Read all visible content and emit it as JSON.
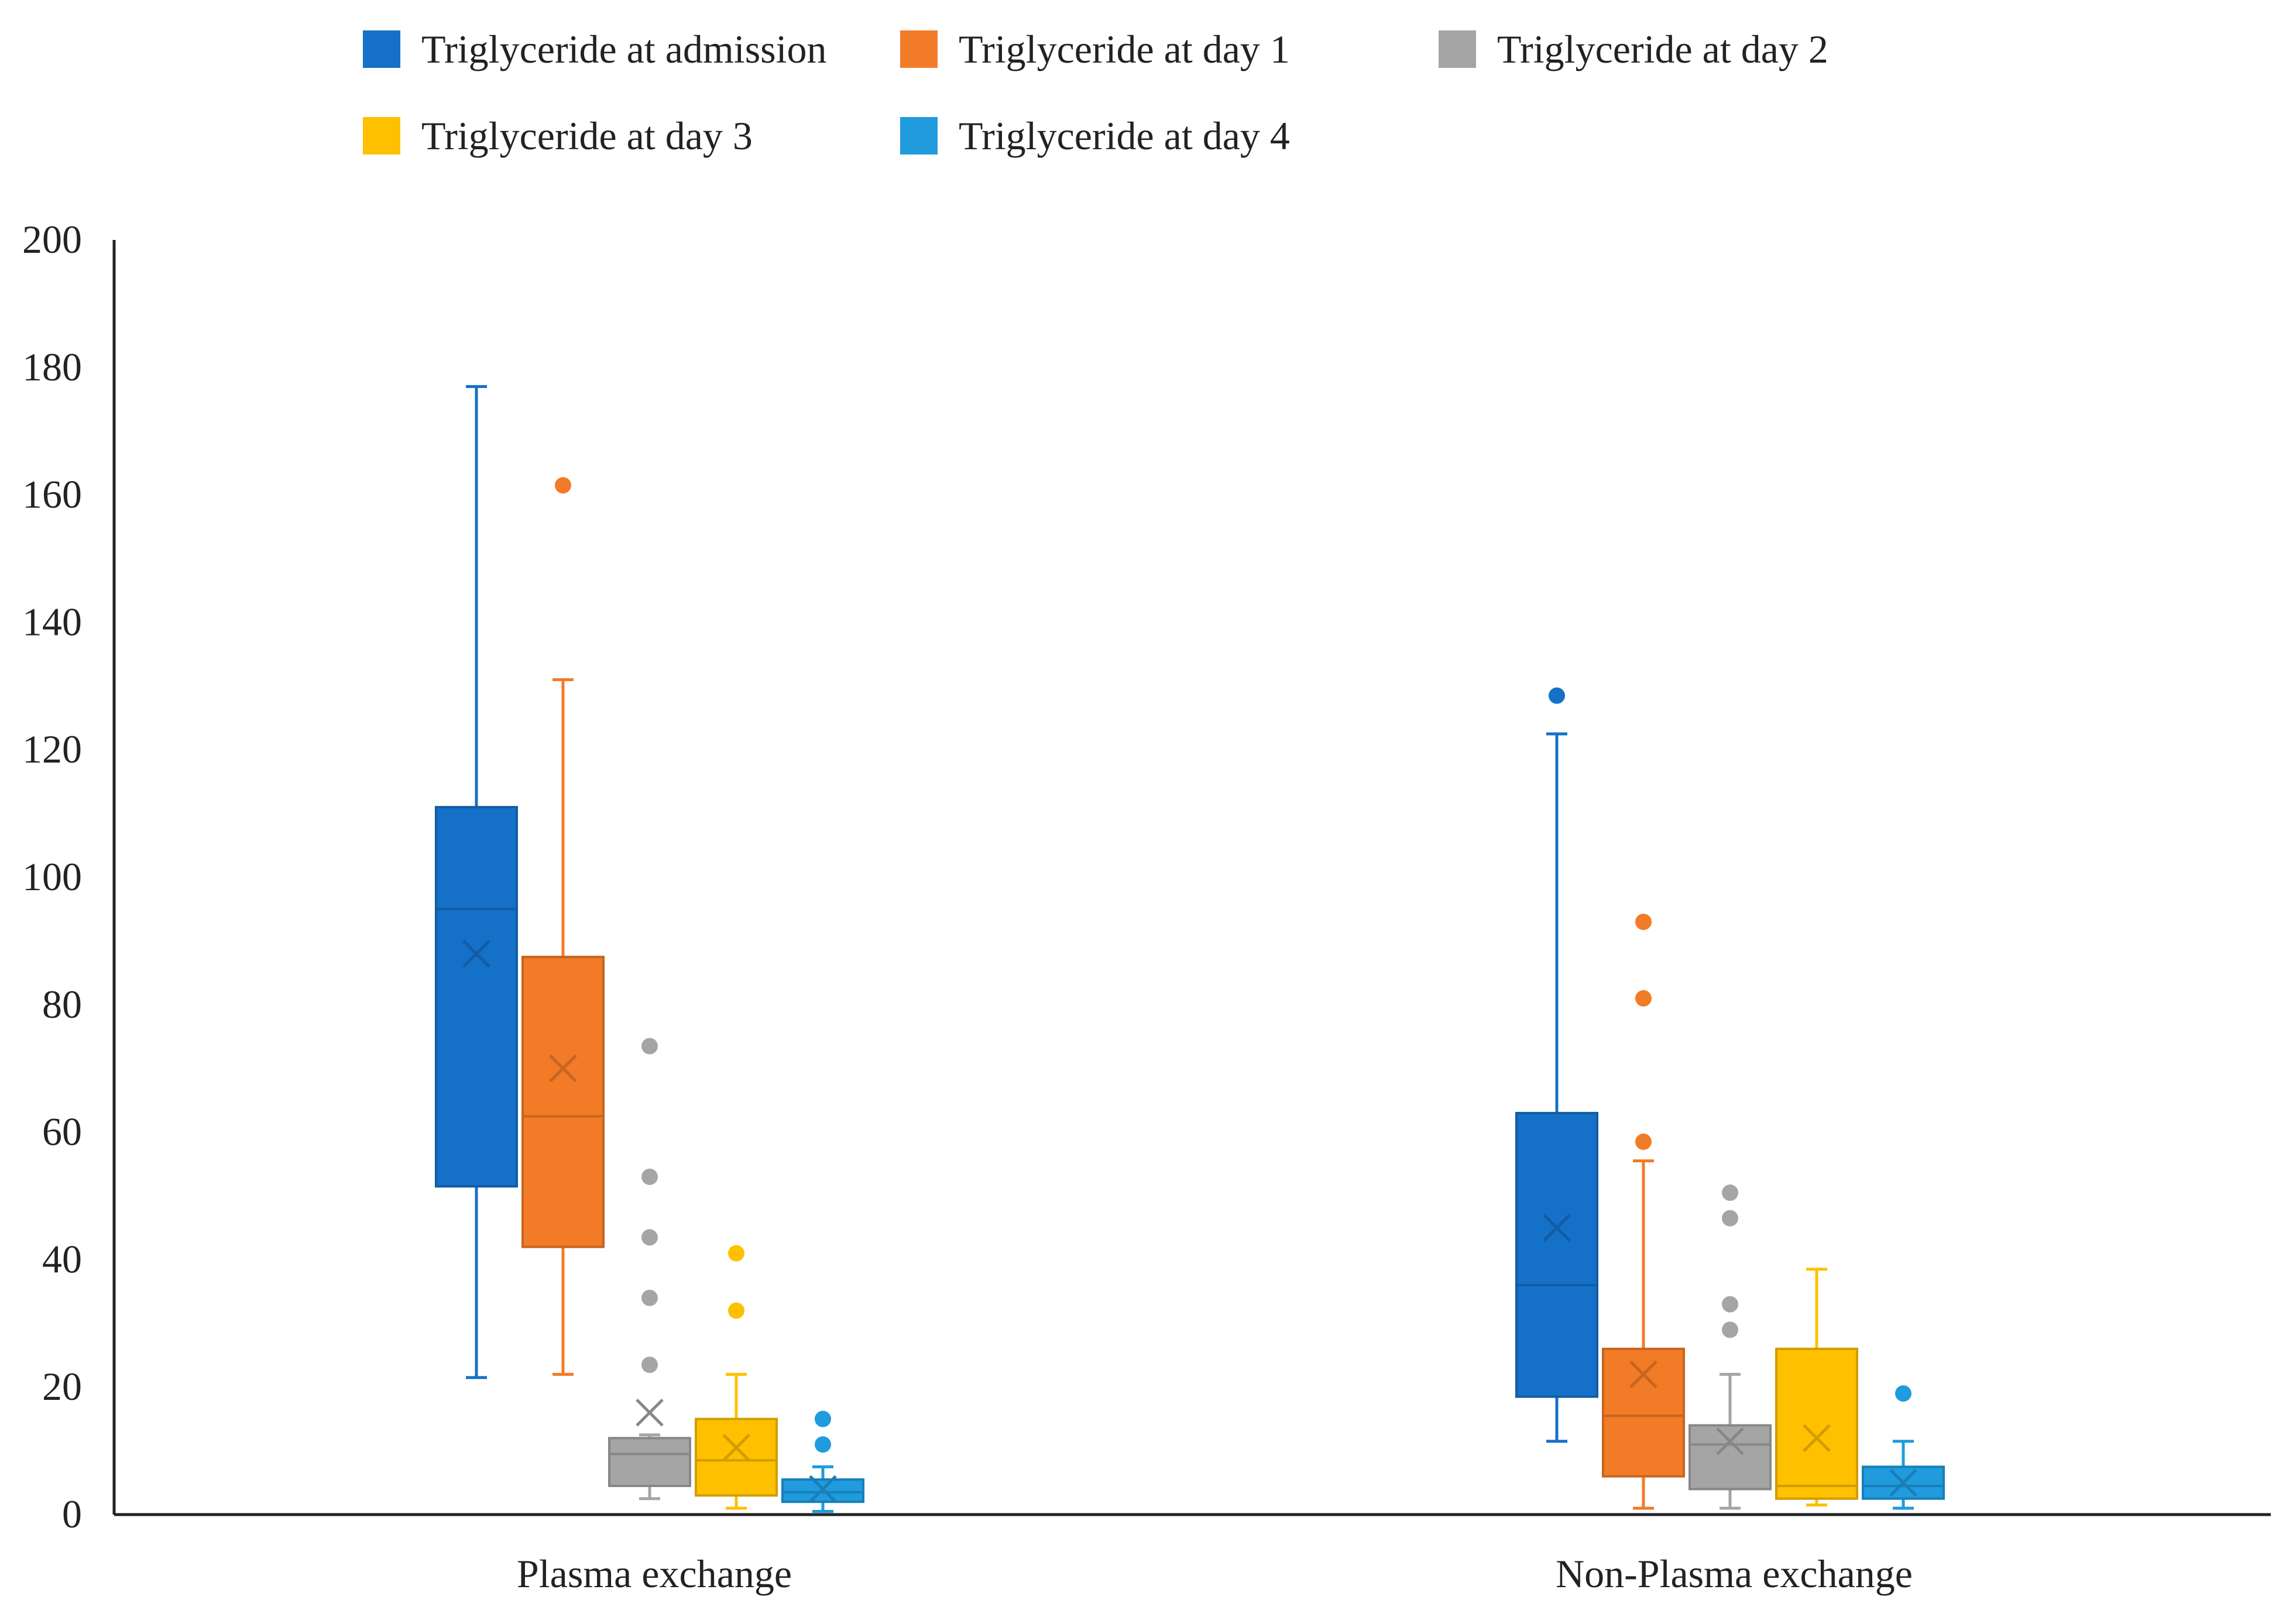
{
  "chart_data": {
    "type": "box",
    "title": "",
    "xlabel": "",
    "ylabel": "",
    "ylim": [
      0,
      200
    ],
    "yticks": [
      "0",
      "20",
      "40",
      "60",
      "80",
      "100",
      "120",
      "140",
      "160",
      "180",
      "200"
    ],
    "grid": false,
    "legend_position": "top",
    "categories": [
      "Plasma exchange",
      "Non-Plasma exchange"
    ],
    "series": [
      {
        "name": "Triglyceride at admission",
        "color": "#1570C8",
        "boxes": [
          {
            "min": 21.5,
            "q1": 51.5,
            "median": 95,
            "q3": 111,
            "max": 177,
            "mean": 88,
            "outliers": []
          },
          {
            "min": 11.5,
            "q1": 18.5,
            "median": 36,
            "q3": 63,
            "max": 122.5,
            "mean": 45,
            "outliers": [
              128.5
            ]
          }
        ]
      },
      {
        "name": "Triglyceride at day 1",
        "color": "#F27B27",
        "boxes": [
          {
            "min": 22,
            "q1": 42,
            "median": 62.5,
            "q3": 87.5,
            "max": 131,
            "mean": 70,
            "outliers": [
              161.5
            ]
          },
          {
            "min": 1,
            "q1": 6,
            "median": 15.5,
            "q3": 26,
            "max": 55.5,
            "mean": 22,
            "outliers": [
              58.5,
              81,
              93
            ]
          }
        ]
      },
      {
        "name": "Triglyceride at day 2",
        "color": "#A5A5A5",
        "boxes": [
          {
            "min": 2.5,
            "q1": 4.5,
            "median": 9.5,
            "q3": 12,
            "max": 12.5,
            "mean": 16,
            "outliers": [
              23.5,
              34,
              43.5,
              53,
              73.5
            ]
          },
          {
            "min": 1,
            "q1": 4,
            "median": 11,
            "q3": 14,
            "max": 22,
            "mean": 11.5,
            "outliers": [
              29,
              33,
              46.5,
              50.5
            ]
          }
        ]
      },
      {
        "name": "Triglyceride at day 3",
        "color": "#FFC000",
        "boxes": [
          {
            "min": 1,
            "q1": 3,
            "median": 8.5,
            "q3": 15,
            "max": 22,
            "mean": 10.5,
            "outliers": [
              32,
              41
            ]
          },
          {
            "min": 1.5,
            "q1": 2.5,
            "median": 4.5,
            "q3": 26,
            "max": 38.5,
            "mean": 12,
            "outliers": []
          }
        ]
      },
      {
        "name": "Triglyceride at day 4",
        "color": "#1F9BDE",
        "boxes": [
          {
            "min": 0.5,
            "q1": 2,
            "median": 3.5,
            "q3": 5.5,
            "max": 7.5,
            "mean": 4,
            "outliers": [
              11,
              15
            ]
          },
          {
            "min": 1,
            "q1": 2.5,
            "median": 4.5,
            "q3": 7.5,
            "max": 11.5,
            "mean": 5,
            "outliers": [
              19
            ]
          }
        ]
      }
    ]
  }
}
